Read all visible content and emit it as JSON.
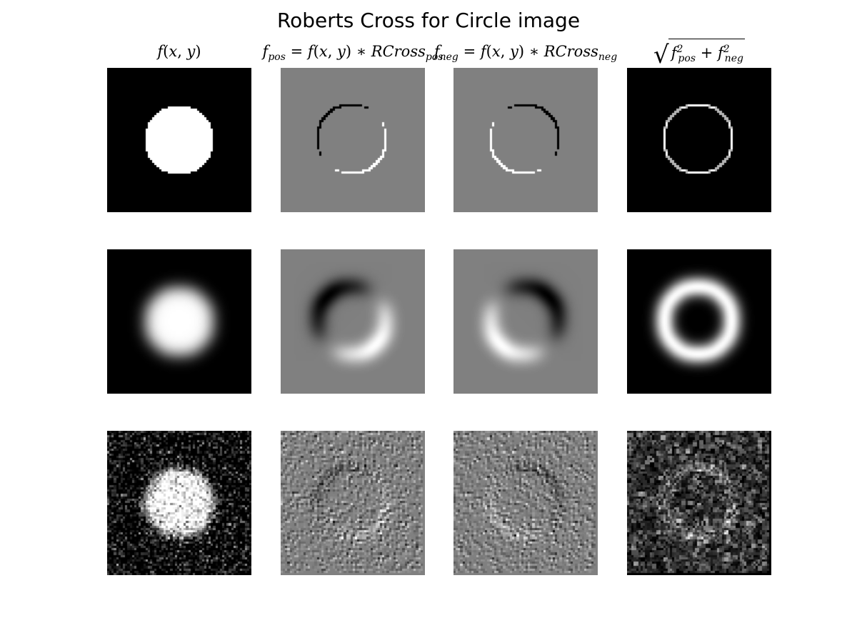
{
  "figure": {
    "title": "Roberts Cross for Circle image"
  },
  "columns": [
    {
      "id": "original",
      "label": "f(x,y)"
    },
    {
      "id": "positive",
      "label": "f_pos = f(x,y) * RCross_pos"
    },
    {
      "id": "negative",
      "label": "f_neg = f(x,y) * RCross_neg"
    },
    {
      "id": "magnitude",
      "label": "sqrt(f_pos^2 + f_neg^2)"
    }
  ],
  "rows": [
    {
      "id": "binary-circle"
    },
    {
      "id": "blurred-circle"
    },
    {
      "id": "noisy-circle"
    }
  ],
  "palette": {
    "background": "#ffffff",
    "black": "#000000",
    "white": "#ffffff",
    "zero_gray": "#808080"
  }
}
